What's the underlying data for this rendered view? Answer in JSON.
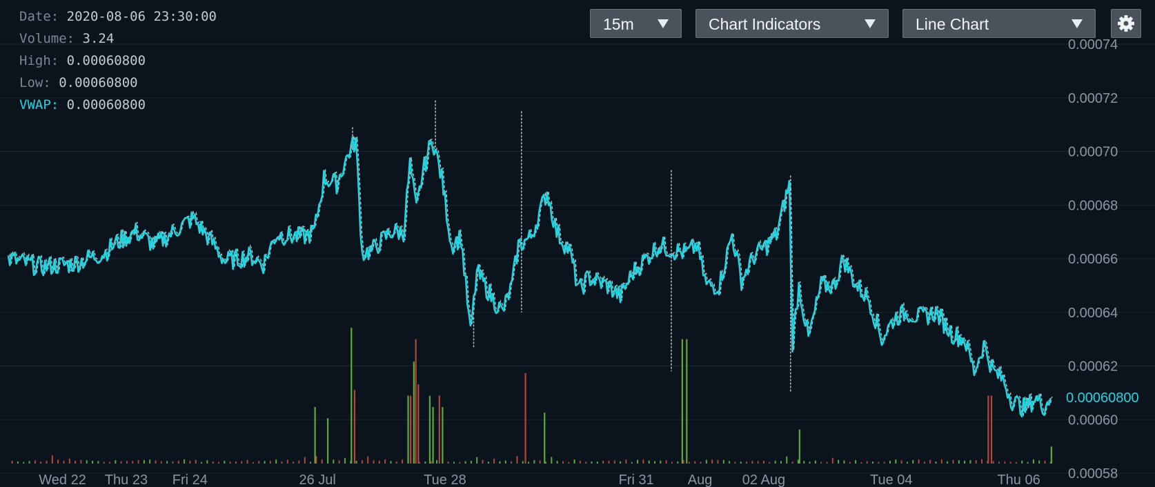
{
  "info": {
    "date_label": "Date:",
    "date": "2020-08-06 23:30:00",
    "volume_label": "Volume:",
    "volume": "3.24",
    "high_label": "High:",
    "high": "0.00060800",
    "low_label": "Low:",
    "low": "0.00060800",
    "vwap_label": "VWAP:",
    "vwap": "0.00060800"
  },
  "controls": {
    "interval": "15m",
    "indicators": "Chart Indicators",
    "chart_type": "Line Chart",
    "settings_icon": "gear-icon"
  },
  "colors": {
    "background": "#0b131d",
    "line": "#22d3e0",
    "vwap_dashed": "#b9bec4",
    "volume_up": "#5fa83a",
    "volume_down": "#b5473a",
    "grid": "#1c2733",
    "axis_text": "#8c96a2"
  },
  "chart_data": {
    "type": "line",
    "title": "",
    "y_ticks": [
      "0.00074",
      "0.00072",
      "0.00070",
      "0.00068",
      "0.00066",
      "0.00064",
      "0.00062",
      "0.00060",
      "0.00058"
    ],
    "ylim": [
      0.00058,
      0.00074
    ],
    "x_ticks": [
      {
        "label": "Wed 22",
        "t": 0.85
      },
      {
        "label": "Thu 23",
        "t": 1.85
      },
      {
        "label": "Fri 24",
        "t": 2.85
      },
      {
        "label": "26 Jul",
        "t": 4.85
      },
      {
        "label": "Tue 28",
        "t": 6.85
      },
      {
        "label": "Fri 31",
        "t": 9.85
      },
      {
        "label": "Aug",
        "t": 10.85
      },
      {
        "label": "02 Aug",
        "t": 11.85
      },
      {
        "label": "Tue 04",
        "t": 13.85
      },
      {
        "label": "Thu 06",
        "t": 15.85
      }
    ],
    "xlim": [
      0,
      16.45
    ],
    "last_price_label": "0.00060800",
    "last_price": 0.000608,
    "series": [
      {
        "kind": "price",
        "points": [
          [
            0,
            0.00066
          ],
          [
            0.5,
            0.000657
          ],
          [
            1.0,
            0.000658
          ],
          [
            1.5,
            0.000662
          ],
          [
            1.7,
            0.000666
          ],
          [
            2.0,
            0.00067
          ],
          [
            2.3,
            0.000665
          ],
          [
            2.7,
            0.000672
          ],
          [
            2.9,
            0.000675
          ],
          [
            3.2,
            0.000666
          ],
          [
            3.4,
            0.000659
          ],
          [
            3.8,
            0.000661
          ],
          [
            4.0,
            0.000658
          ],
          [
            4.2,
            0.000669
          ],
          [
            4.6,
            0.000668
          ],
          [
            4.8,
            0.00067
          ],
          [
            4.95,
            0.00069
          ],
          [
            5.15,
            0.000688
          ],
          [
            5.35,
            0.0007
          ],
          [
            5.45,
            0.000704
          ],
          [
            5.55,
            0.000662
          ],
          [
            5.7,
            0.000663
          ],
          [
            6.0,
            0.00067
          ],
          [
            6.2,
            0.00067
          ],
          [
            6.3,
            0.000695
          ],
          [
            6.4,
            0.000678
          ],
          [
            6.5,
            0.000692
          ],
          [
            6.65,
            0.000705
          ],
          [
            6.8,
            0.00069
          ],
          [
            6.95,
            0.000665
          ],
          [
            7.1,
            0.000668
          ],
          [
            7.25,
            0.000632
          ],
          [
            7.35,
            0.000655
          ],
          [
            7.6,
            0.000645
          ],
          [
            7.75,
            0.00064
          ],
          [
            7.9,
            0.00065
          ],
          [
            8.0,
            0.000665
          ],
          [
            8.2,
            0.000668
          ],
          [
            8.45,
            0.000685
          ],
          [
            8.6,
            0.00067
          ],
          [
            8.8,
            0.000663
          ],
          [
            8.95,
            0.000648
          ],
          [
            9.1,
            0.000653
          ],
          [
            9.4,
            0.00065
          ],
          [
            9.6,
            0.000646
          ],
          [
            9.8,
            0.000655
          ],
          [
            10.0,
            0.00066
          ],
          [
            10.2,
            0.000665
          ],
          [
            10.45,
            0.000663
          ],
          [
            10.65,
            0.000662
          ],
          [
            10.8,
            0.000665
          ],
          [
            10.95,
            0.00065
          ],
          [
            11.15,
            0.00065
          ],
          [
            11.35,
            0.000669
          ],
          [
            11.5,
            0.000652
          ],
          [
            11.7,
            0.000661
          ],
          [
            11.9,
            0.000665
          ],
          [
            12.05,
            0.000669
          ],
          [
            12.25,
            0.000688
          ],
          [
            12.3,
            0.000629
          ],
          [
            12.4,
            0.00065
          ],
          [
            12.55,
            0.00063
          ],
          [
            12.75,
            0.00065
          ],
          [
            12.95,
            0.00065
          ],
          [
            13.1,
            0.00066
          ],
          [
            13.3,
            0.00065
          ],
          [
            13.5,
            0.000645
          ],
          [
            13.7,
            0.00063
          ],
          [
            13.9,
            0.000638
          ],
          [
            14.1,
            0.00064
          ],
          [
            14.3,
            0.000638
          ],
          [
            14.55,
            0.00064
          ],
          [
            14.8,
            0.000632
          ],
          [
            15.0,
            0.00063
          ],
          [
            15.15,
            0.000618
          ],
          [
            15.3,
            0.000628
          ],
          [
            15.45,
            0.000618
          ],
          [
            15.6,
            0.000615
          ],
          [
            15.75,
            0.000607
          ],
          [
            15.95,
            0.000604
          ],
          [
            16.1,
            0.000608
          ],
          [
            16.25,
            0.000605
          ],
          [
            16.35,
            0.000608
          ]
        ]
      },
      {
        "kind": "vwap",
        "spikes": [
          [
            8.05,
            0.000715,
            0.00064
          ],
          [
            10.4,
            0.000693,
            0.000618
          ],
          [
            12.27,
            0.000691,
            0.00061
          ],
          [
            6.7,
            0.000719,
            0.0007
          ],
          [
            7.3,
            0.000638,
            0.000627
          ],
          [
            5.4,
            0.000709,
            0.0007
          ]
        ]
      }
    ],
    "volume": {
      "spikes": [
        [
          4.8,
          0.1,
          "up"
        ],
        [
          5.0,
          0.08,
          "up"
        ],
        [
          5.37,
          0.24,
          "up"
        ],
        [
          5.42,
          0.13,
          "down"
        ],
        [
          6.26,
          0.12,
          "up"
        ],
        [
          6.3,
          0.12,
          "down"
        ],
        [
          6.35,
          0.18,
          "up"
        ],
        [
          6.38,
          0.22,
          "down"
        ],
        [
          6.42,
          0.14,
          "down"
        ],
        [
          6.6,
          0.12,
          "up"
        ],
        [
          6.65,
          0.1,
          "up"
        ],
        [
          6.75,
          0.12,
          "down"
        ],
        [
          6.8,
          0.1,
          "up"
        ],
        [
          8.1,
          0.16,
          "down"
        ],
        [
          8.4,
          0.09,
          "up"
        ],
        [
          10.56,
          0.22,
          "up"
        ],
        [
          10.63,
          0.22,
          "up"
        ],
        [
          12.4,
          0.06,
          "up"
        ],
        [
          15.36,
          0.12,
          "down"
        ],
        [
          15.41,
          0.12,
          "down"
        ],
        [
          16.35,
          0.03,
          "up"
        ]
      ],
      "base_level": 0.01
    }
  }
}
